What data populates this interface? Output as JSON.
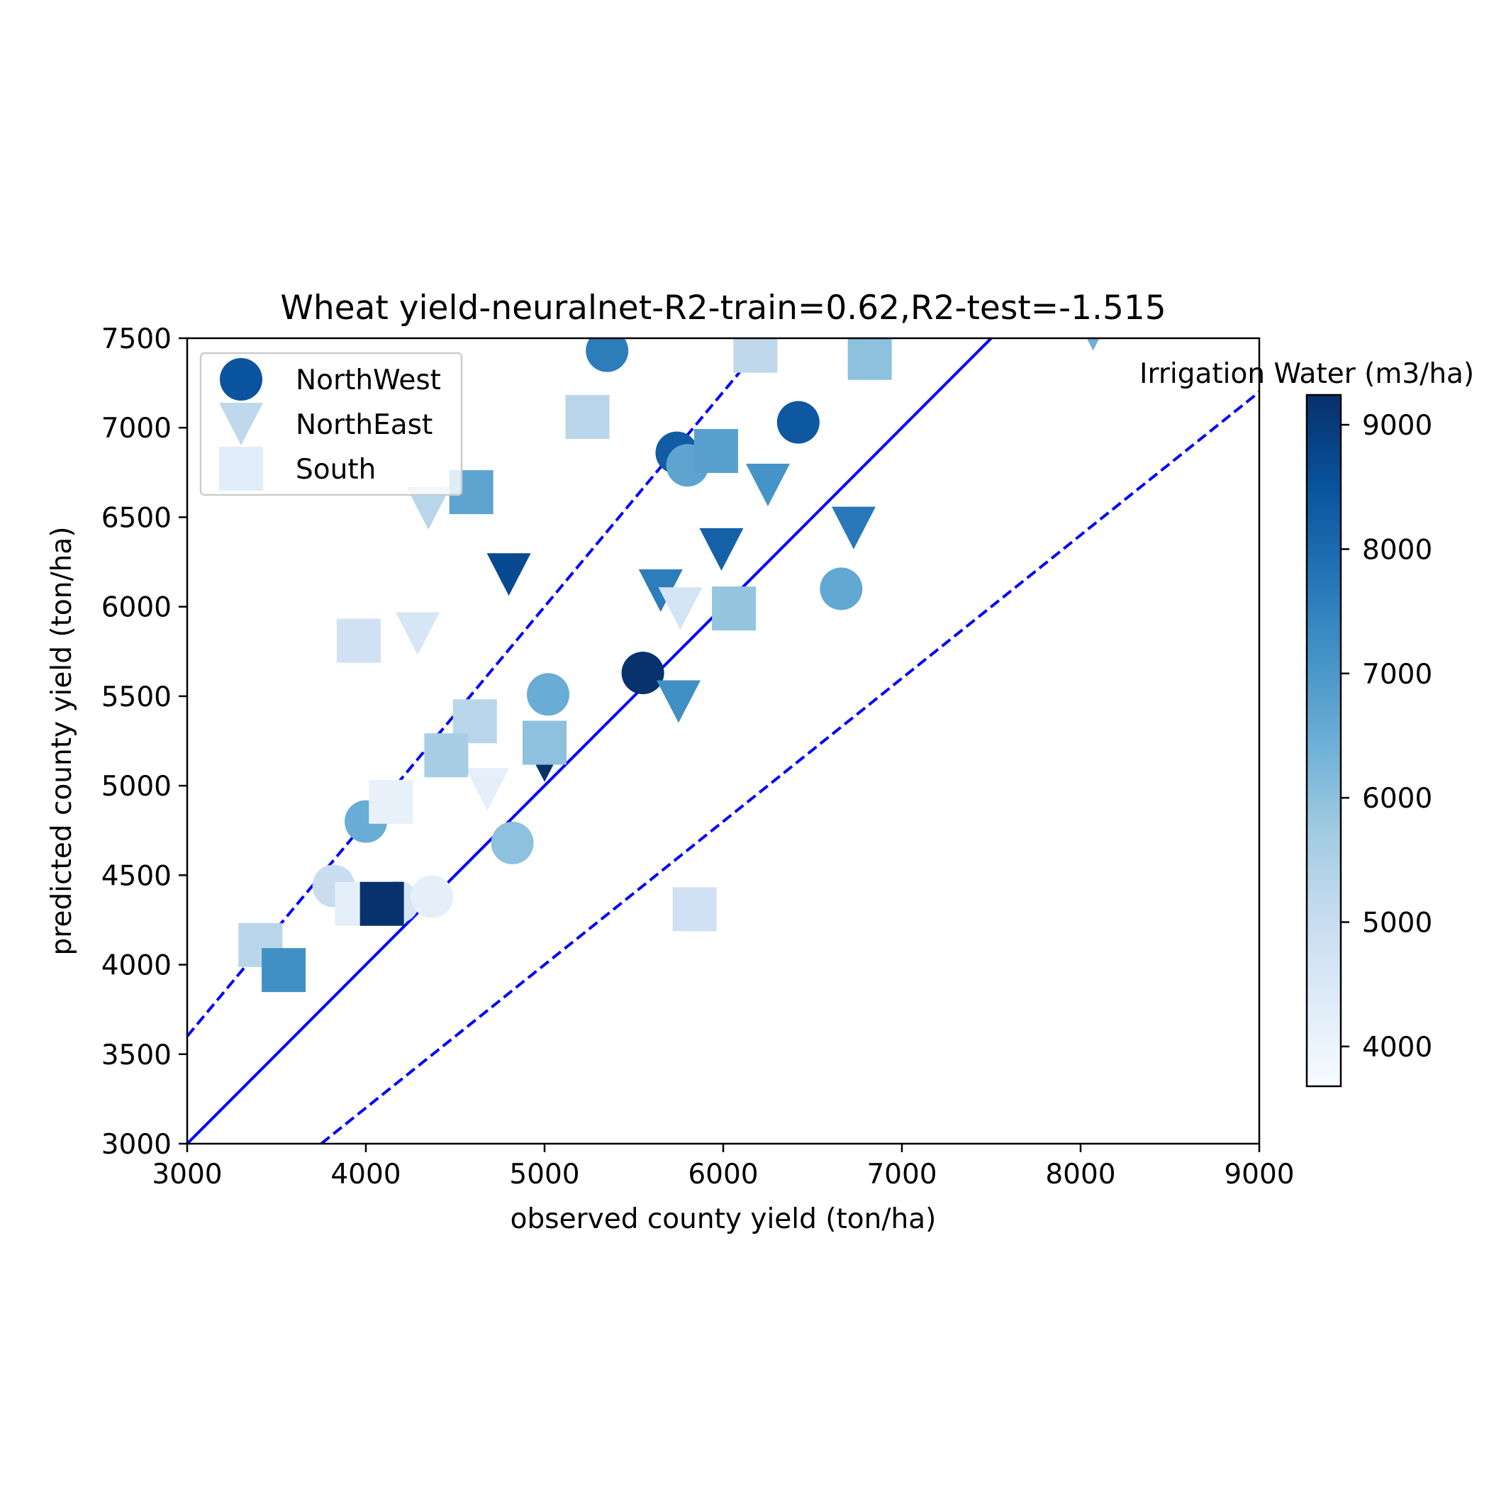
{
  "chart_data": {
    "type": "scatter",
    "title": "Wheat yield-neuralnet-R2-train=0.62,R2-test=-1.515",
    "xlabel": "observed county yield (ton/ha)",
    "ylabel": "predicted county yield (ton/ha)",
    "xlim": [
      3000,
      9000
    ],
    "ylim": [
      3000,
      7500
    ],
    "xticks": [
      "3000",
      "4000",
      "5000",
      "6000",
      "7000",
      "8000",
      "9000"
    ],
    "yticks": [
      "3000",
      "3500",
      "4000",
      "4500",
      "5000",
      "5500",
      "6000",
      "6500",
      "7000",
      "7500"
    ],
    "grid": false,
    "legend_placement": "upper-left",
    "colormap": "Blues",
    "colorbar": {
      "label": "Irrigation Water (m3/ha)",
      "range": [
        3680,
        9240
      ],
      "ticks": [
        "4000",
        "5000",
        "6000",
        "7000",
        "8000",
        "9000"
      ]
    },
    "reference_lines": [
      {
        "style": "solid",
        "color": "#0000ff",
        "x": [
          3000,
          7500
        ],
        "y": [
          3000,
          7500
        ]
      },
      {
        "style": "dashed",
        "color": "#0000ff",
        "x": [
          3000,
          6250
        ],
        "y": [
          3600,
          7500
        ]
      },
      {
        "style": "dashed",
        "color": "#0000ff",
        "x": [
          3750,
          9000
        ],
        "y": [
          3000,
          7200
        ]
      }
    ],
    "series": [
      {
        "name": "NorthWest",
        "marker": "circle",
        "points": [
          {
            "x": 5350,
            "y": 7430,
            "c": 7600
          },
          {
            "x": 6420,
            "y": 7030,
            "c": 8400
          },
          {
            "x": 5740,
            "y": 6860,
            "c": 8300
          },
          {
            "x": 5800,
            "y": 6790,
            "c": 6700
          },
          {
            "x": 6660,
            "y": 6100,
            "c": 6600
          },
          {
            "x": 5550,
            "y": 5630,
            "c": 9200
          },
          {
            "x": 5020,
            "y": 5510,
            "c": 6500
          },
          {
            "x": 4000,
            "y": 4800,
            "c": 6500
          },
          {
            "x": 4820,
            "y": 4680,
            "c": 6000
          },
          {
            "x": 3820,
            "y": 4440,
            "c": 5000
          },
          {
            "x": 4180,
            "y": 4350,
            "c": 4600
          },
          {
            "x": 4370,
            "y": 4380,
            "c": 4200
          }
        ]
      },
      {
        "name": "NorthEast",
        "marker": "triangle-down",
        "points": [
          {
            "x": 8070,
            "y": 7550,
            "c": 6400
          },
          {
            "x": 6250,
            "y": 6680,
            "c": 7100
          },
          {
            "x": 4350,
            "y": 6550,
            "c": 5300
          },
          {
            "x": 6730,
            "y": 6440,
            "c": 7700
          },
          {
            "x": 5990,
            "y": 6320,
            "c": 8200
          },
          {
            "x": 4800,
            "y": 6180,
            "c": 8700
          },
          {
            "x": 5650,
            "y": 6090,
            "c": 7600
          },
          {
            "x": 5760,
            "y": 5990,
            "c": 4700
          },
          {
            "x": 4290,
            "y": 5850,
            "c": 4600
          },
          {
            "x": 5750,
            "y": 5470,
            "c": 7200
          },
          {
            "x": 5000,
            "y": 5140,
            "c": 9200
          },
          {
            "x": 4680,
            "y": 4980,
            "c": 4200
          }
        ]
      },
      {
        "name": "South",
        "marker": "square",
        "points": [
          {
            "x": 6180,
            "y": 7430,
            "c": 5200
          },
          {
            "x": 6820,
            "y": 7390,
            "c": 6000
          },
          {
            "x": 5240,
            "y": 7060,
            "c": 5300
          },
          {
            "x": 5960,
            "y": 6870,
            "c": 6800
          },
          {
            "x": 4590,
            "y": 6640,
            "c": 6700
          },
          {
            "x": 6060,
            "y": 5990,
            "c": 5900
          },
          {
            "x": 3960,
            "y": 5810,
            "c": 4800
          },
          {
            "x": 4610,
            "y": 5360,
            "c": 5300
          },
          {
            "x": 5000,
            "y": 5240,
            "c": 6000
          },
          {
            "x": 4450,
            "y": 5170,
            "c": 5600
          },
          {
            "x": 4140,
            "y": 4910,
            "c": 4100
          },
          {
            "x": 3950,
            "y": 4340,
            "c": 4200
          },
          {
            "x": 4090,
            "y": 4340,
            "c": 9200
          },
          {
            "x": 5840,
            "y": 4310,
            "c": 4800
          },
          {
            "x": 3410,
            "y": 4110,
            "c": 5300
          },
          {
            "x": 3540,
            "y": 3970,
            "c": 7200
          }
        ]
      }
    ]
  }
}
